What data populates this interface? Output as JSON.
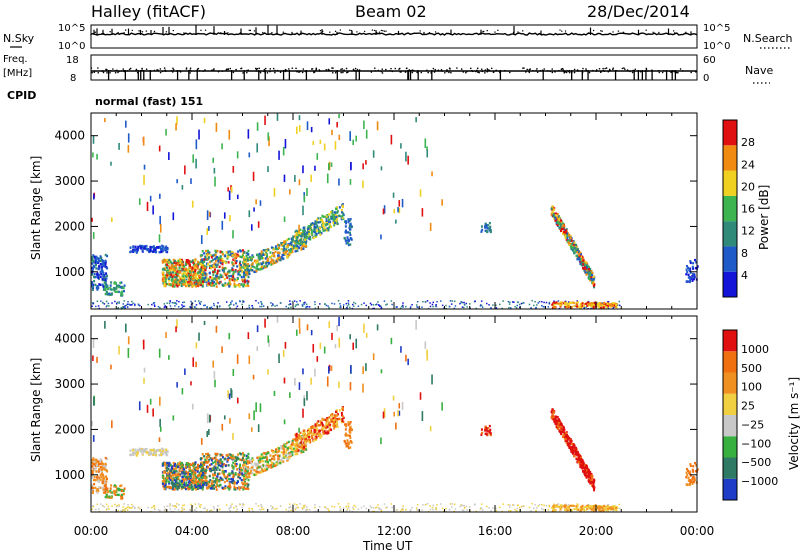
{
  "header": {
    "title": "Halley (fitACF)",
    "beam": "Beam 02",
    "date": "28/Dec/2014"
  },
  "strips": {
    "nsky_label": "N.Sky",
    "nsky_ticks": [
      "10^5",
      "10^0"
    ],
    "nsearch_label": "N.Search",
    "nsearch_ticks": [
      "10^5",
      "10^0"
    ],
    "freq_label": "Freq.",
    "freq_unit": "[MHz]",
    "freq_ticks": [
      "18",
      "8"
    ],
    "nave_label": "Nave",
    "nave_ticks": [
      "60",
      "0"
    ],
    "cpid_label": "CPID",
    "cpid_text": "normal (fast) 151"
  },
  "chart_data": [
    {
      "type": "heatmap",
      "name": "power",
      "xlabel": "",
      "ylabel": "Slant Range [km]",
      "x_range_hours": [
        0,
        24
      ],
      "ylim": [
        180,
        4500
      ],
      "yticks": [
        "1000",
        "2000",
        "3000",
        "4000"
      ],
      "colorbar_label": "Power [dB]",
      "colorbar_ticks": [
        "28",
        "24",
        "20",
        "16",
        "12",
        "8",
        "4"
      ],
      "colors": [
        "#1414d8",
        "#1e5ac8",
        "#2f8a7a",
        "#3cb450",
        "#f0d020",
        "#f08a10",
        "#e01010"
      ]
    },
    {
      "type": "heatmap",
      "name": "velocity",
      "xlabel": "Time UT",
      "ylabel": "Slant Range [km]",
      "x_range_hours": [
        0,
        24
      ],
      "xticks": [
        "00:00",
        "04:00",
        "08:00",
        "12:00",
        "16:00",
        "20:00",
        "00:00"
      ],
      "ylim": [
        180,
        4500
      ],
      "yticks": [
        "1000",
        "2000",
        "3000",
        "4000"
      ],
      "colorbar_label": "Velocity [m s⁻¹]",
      "colorbar_ticks": [
        "1000",
        "500",
        "100",
        "25",
        "−25",
        "−100",
        "−500",
        "−1000"
      ],
      "colors": [
        "#1e3cc8",
        "#2e7a64",
        "#38b040",
        "#c8c8c8",
        "#f0d040",
        "#f09020",
        "#f07010",
        "#e01010"
      ]
    }
  ]
}
